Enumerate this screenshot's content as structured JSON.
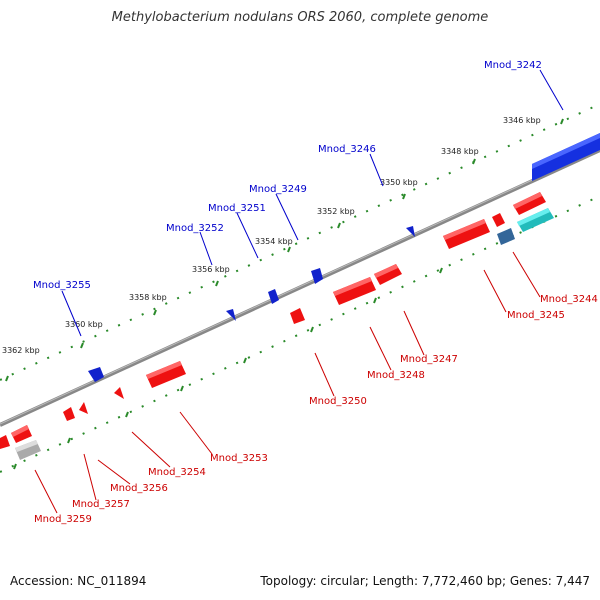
{
  "title": "Methylobacterium nodulans ORS 2060, complete genome",
  "footer": {
    "accession": "Accession: NC_011894",
    "summary": "Topology: circular; Length: 7,772,460 bp; Genes: 7,447"
  },
  "colors": {
    "forward_label": "#0000cc",
    "reverse_label": "#cc0000",
    "tick": "#2a8a2a",
    "backbone": "#888888"
  },
  "kbp_labels": [
    "3346 kbp",
    "3348 kbp",
    "3350 kbp",
    "3352 kbp",
    "3354 kbp",
    "3356 kbp",
    "3358 kbp",
    "3360 kbp",
    "3362 kbp"
  ],
  "forward_genes": [
    "Mnod_3242",
    "Mnod_3246",
    "Mnod_3249",
    "Mnod_3251",
    "Mnod_3252",
    "Mnod_3255"
  ],
  "reverse_genes": [
    "Mnod_3244",
    "Mnod_3245",
    "Mnod_3247",
    "Mnod_3248",
    "Mnod_3250",
    "Mnod_3253",
    "Mnod_3254",
    "Mnod_3256",
    "Mnod_3257",
    "Mnod_3259"
  ]
}
